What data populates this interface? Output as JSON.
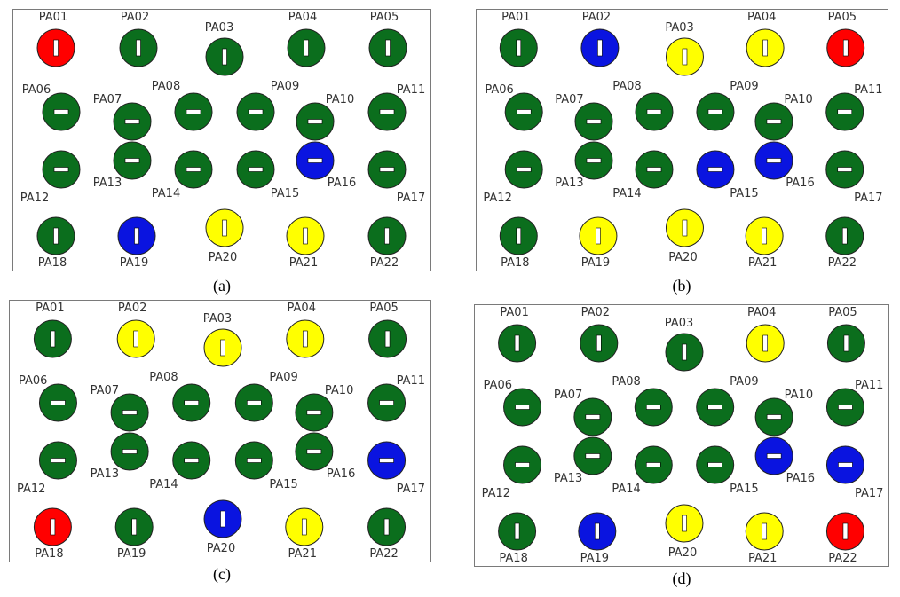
{
  "colors": {
    "green": "#0b6e1d",
    "blue": "#0a14e0",
    "red": "#ff0000",
    "yellow": "#ffff00",
    "border": "#222222",
    "mark": "#ffffff"
  },
  "panels": [
    {
      "caption": "(a)",
      "pins": [
        {
          "label": "PA01",
          "color": "red"
        },
        {
          "label": "PA02",
          "color": "green"
        },
        {
          "label": "PA03",
          "color": "green"
        },
        {
          "label": "PA04",
          "color": "green"
        },
        {
          "label": "PA05",
          "color": "green"
        },
        {
          "label": "PA06",
          "color": "green"
        },
        {
          "label": "PA07",
          "color": "green"
        },
        {
          "label": "PA08",
          "color": "green"
        },
        {
          "label": "PA09",
          "color": "green"
        },
        {
          "label": "PA10",
          "color": "green"
        },
        {
          "label": "PA11",
          "color": "green"
        },
        {
          "label": "PA12",
          "color": "green"
        },
        {
          "label": "PA13",
          "color": "green"
        },
        {
          "label": "PA14",
          "color": "green"
        },
        {
          "label": "PA15",
          "color": "green"
        },
        {
          "label": "PA16",
          "color": "blue"
        },
        {
          "label": "PA17",
          "color": "green"
        },
        {
          "label": "PA18",
          "color": "green"
        },
        {
          "label": "PA19",
          "color": "blue"
        },
        {
          "label": "PA20",
          "color": "yellow"
        },
        {
          "label": "PA21",
          "color": "yellow"
        },
        {
          "label": "PA22",
          "color": "green"
        }
      ]
    },
    {
      "caption": "(b)",
      "pins": [
        {
          "label": "PA01",
          "color": "green"
        },
        {
          "label": "PA02",
          "color": "blue"
        },
        {
          "label": "PA03",
          "color": "yellow"
        },
        {
          "label": "PA04",
          "color": "yellow"
        },
        {
          "label": "PA05",
          "color": "red"
        },
        {
          "label": "PA06",
          "color": "green"
        },
        {
          "label": "PA07",
          "color": "green"
        },
        {
          "label": "PA08",
          "color": "green"
        },
        {
          "label": "PA09",
          "color": "green"
        },
        {
          "label": "PA10",
          "color": "green"
        },
        {
          "label": "PA11",
          "color": "green"
        },
        {
          "label": "PA12",
          "color": "green"
        },
        {
          "label": "PA13",
          "color": "green"
        },
        {
          "label": "PA14",
          "color": "green"
        },
        {
          "label": "PA15",
          "color": "blue"
        },
        {
          "label": "PA16",
          "color": "blue"
        },
        {
          "label": "PA17",
          "color": "green"
        },
        {
          "label": "PA18",
          "color": "green"
        },
        {
          "label": "PA19",
          "color": "yellow"
        },
        {
          "label": "PA20",
          "color": "yellow"
        },
        {
          "label": "PA21",
          "color": "yellow"
        },
        {
          "label": "PA22",
          "color": "green"
        }
      ]
    },
    {
      "caption": "(c)",
      "pins": [
        {
          "label": "PA01",
          "color": "green"
        },
        {
          "label": "PA02",
          "color": "yellow"
        },
        {
          "label": "PA03",
          "color": "yellow"
        },
        {
          "label": "PA04",
          "color": "yellow"
        },
        {
          "label": "PA05",
          "color": "green"
        },
        {
          "label": "PA06",
          "color": "green"
        },
        {
          "label": "PA07",
          "color": "green"
        },
        {
          "label": "PA08",
          "color": "green"
        },
        {
          "label": "PA09",
          "color": "green"
        },
        {
          "label": "PA10",
          "color": "green"
        },
        {
          "label": "PA11",
          "color": "green"
        },
        {
          "label": "PA12",
          "color": "green"
        },
        {
          "label": "PA13",
          "color": "green"
        },
        {
          "label": "PA14",
          "color": "green"
        },
        {
          "label": "PA15",
          "color": "green"
        },
        {
          "label": "PA16",
          "color": "green"
        },
        {
          "label": "PA17",
          "color": "blue"
        },
        {
          "label": "PA18",
          "color": "red"
        },
        {
          "label": "PA19",
          "color": "green"
        },
        {
          "label": "PA20",
          "color": "blue"
        },
        {
          "label": "PA21",
          "color": "yellow"
        },
        {
          "label": "PA22",
          "color": "green"
        }
      ]
    },
    {
      "caption": "(d)",
      "pins": [
        {
          "label": "PA01",
          "color": "green"
        },
        {
          "label": "PA02",
          "color": "green"
        },
        {
          "label": "PA03",
          "color": "green"
        },
        {
          "label": "PA04",
          "color": "yellow"
        },
        {
          "label": "PA05",
          "color": "green"
        },
        {
          "label": "PA06",
          "color": "green"
        },
        {
          "label": "PA07",
          "color": "green"
        },
        {
          "label": "PA08",
          "color": "green"
        },
        {
          "label": "PA09",
          "color": "green"
        },
        {
          "label": "PA10",
          "color": "green"
        },
        {
          "label": "PA11",
          "color": "green"
        },
        {
          "label": "PA12",
          "color": "green"
        },
        {
          "label": "PA13",
          "color": "green"
        },
        {
          "label": "PA14",
          "color": "green"
        },
        {
          "label": "PA15",
          "color": "green"
        },
        {
          "label": "PA16",
          "color": "blue"
        },
        {
          "label": "PA17",
          "color": "blue"
        },
        {
          "label": "PA18",
          "color": "green"
        },
        {
          "label": "PA19",
          "color": "blue"
        },
        {
          "label": "PA20",
          "color": "yellow"
        },
        {
          "label": "PA21",
          "color": "yellow"
        },
        {
          "label": "PA22",
          "color": "red"
        }
      ]
    }
  ]
}
